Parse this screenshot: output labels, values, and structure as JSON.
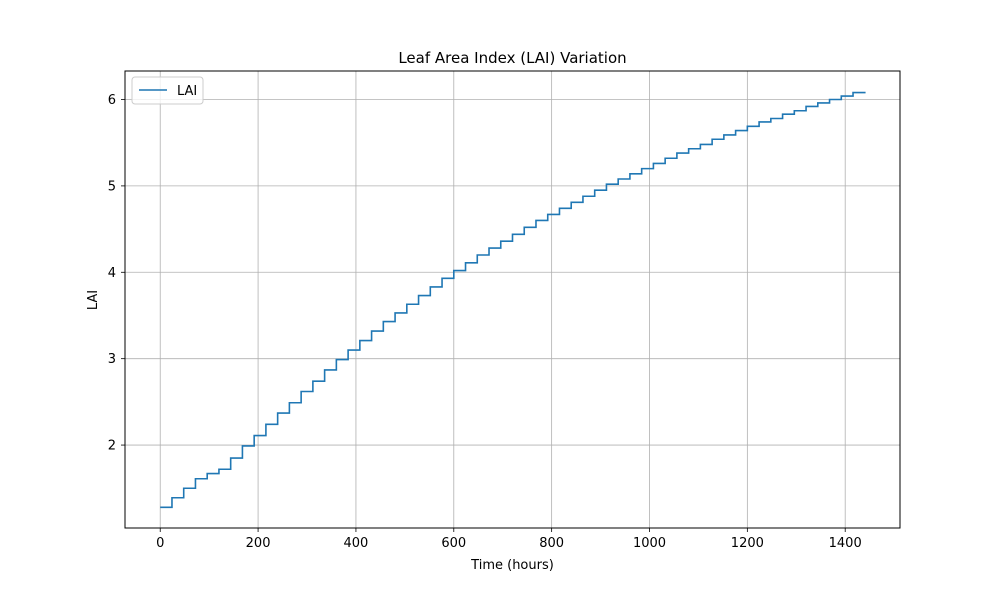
{
  "chart_data": {
    "type": "line",
    "title": "Leaf Area Index (LAI) Variation",
    "xlabel": "Time (hours)",
    "ylabel": "LAI",
    "xlim": [
      -72,
      1512
    ],
    "ylim": [
      1.04,
      6.33
    ],
    "xticks": [
      0,
      200,
      400,
      600,
      800,
      1000,
      1200,
      1400
    ],
    "yticks": [
      2,
      3,
      4,
      5,
      6
    ],
    "grid": true,
    "legend": "top-left",
    "line_color": "#1f77b4",
    "step_interval_hours": 24,
    "series": [
      {
        "name": "LAI",
        "x": [
          0,
          24,
          48,
          72,
          96,
          120,
          144,
          168,
          192,
          216,
          240,
          264,
          288,
          312,
          336,
          360,
          384,
          408,
          432,
          456,
          480,
          504,
          528,
          552,
          576,
          600,
          624,
          648,
          672,
          696,
          720,
          744,
          768,
          792,
          816,
          840,
          864,
          888,
          912,
          936,
          960,
          984,
          1008,
          1032,
          1056,
          1080,
          1104,
          1128,
          1152,
          1176,
          1200,
          1224,
          1248,
          1272,
          1296,
          1320,
          1344,
          1368,
          1392,
          1416,
          1440
        ],
        "y": [
          1.28,
          1.39,
          1.5,
          1.61,
          1.67,
          1.72,
          1.85,
          1.99,
          2.11,
          2.24,
          2.37,
          2.49,
          2.62,
          2.74,
          2.87,
          2.99,
          3.1,
          3.21,
          3.32,
          3.43,
          3.53,
          3.63,
          3.73,
          3.83,
          3.93,
          4.02,
          4.11,
          4.2,
          4.28,
          4.36,
          4.44,
          4.52,
          4.6,
          4.67,
          4.74,
          4.81,
          4.88,
          4.95,
          5.02,
          5.08,
          5.14,
          5.2,
          5.26,
          5.32,
          5.38,
          5.43,
          5.48,
          5.54,
          5.59,
          5.64,
          5.69,
          5.74,
          5.78,
          5.83,
          5.87,
          5.92,
          5.96,
          6.0,
          6.04,
          6.08,
          6.09
        ]
      }
    ]
  }
}
